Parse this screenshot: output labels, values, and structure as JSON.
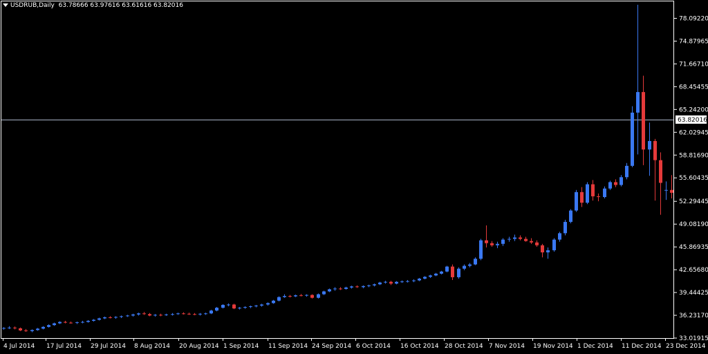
{
  "header": {
    "symbol": "USDRUB,Daily",
    "ohlc": "63.78666 63.97616 63.61616 63.82016"
  },
  "colors": {
    "background": "#000000",
    "bull": "#3a78f2",
    "bear": "#e53a3a",
    "axis": "#ffffff",
    "crosshair": "#aab4c8",
    "price_label_bg": "#ffffff",
    "price_label_text": "#000000"
  },
  "chart_data": {
    "type": "candlestick",
    "ylim": [
      33.01915,
      79.7
    ],
    "y_ticks": [
      "78.09220",
      "74.87965",
      "71.66710",
      "68.45455",
      "65.24200",
      "62.02945",
      "58.81690",
      "55.60435",
      "52.29445",
      "49.08190",
      "45.86935",
      "42.65680",
      "39.44425",
      "36.23170",
      "33.01915"
    ],
    "x_ticks": [
      "4 Jul 2014",
      "17 Jul 2014",
      "29 Jul 2014",
      "8 Aug 2014",
      "20 Aug 2014",
      "1 Sep 2014",
      "11 Sep 2014",
      "24 Sep 2014",
      "6 Oct 2014",
      "16 Oct 2014",
      "28 Oct 2014",
      "7 Nov 2014",
      "19 Nov 2014",
      "1 Dec 2014",
      "11 Dec 2014",
      "23 Dec 2014"
    ],
    "current_price": "63.82016",
    "candles": [
      [
        34.35,
        34.55,
        34.2,
        34.45
      ],
      [
        34.45,
        34.7,
        34.3,
        34.5
      ],
      [
        34.5,
        34.65,
        34.25,
        34.4
      ],
      [
        34.4,
        34.5,
        34.0,
        34.1
      ],
      [
        34.1,
        34.3,
        33.9,
        34.0
      ],
      [
        34.0,
        34.25,
        33.85,
        34.15
      ],
      [
        34.15,
        34.45,
        34.05,
        34.35
      ],
      [
        34.35,
        34.7,
        34.25,
        34.6
      ],
      [
        34.6,
        34.95,
        34.5,
        34.85
      ],
      [
        34.85,
        35.2,
        34.75,
        35.1
      ],
      [
        35.1,
        35.4,
        35.0,
        35.3
      ],
      [
        35.3,
        35.45,
        35.1,
        35.2
      ],
      [
        35.2,
        35.35,
        35.05,
        35.15
      ],
      [
        35.15,
        35.35,
        35.0,
        35.25
      ],
      [
        35.25,
        35.45,
        35.1,
        35.3
      ],
      [
        35.3,
        35.55,
        35.2,
        35.45
      ],
      [
        35.45,
        35.7,
        35.35,
        35.6
      ],
      [
        35.6,
        35.9,
        35.5,
        35.8
      ],
      [
        35.8,
        36.05,
        35.7,
        35.95
      ],
      [
        35.95,
        36.1,
        35.8,
        35.9
      ],
      [
        35.9,
        36.1,
        35.75,
        36.0
      ],
      [
        36.0,
        36.2,
        35.85,
        36.1
      ],
      [
        36.1,
        36.3,
        36.0,
        36.2
      ],
      [
        36.2,
        36.45,
        36.05,
        36.35
      ],
      [
        36.35,
        36.6,
        36.2,
        36.5
      ],
      [
        36.5,
        36.7,
        36.3,
        36.4
      ],
      [
        36.4,
        36.55,
        36.1,
        36.2
      ],
      [
        36.2,
        36.4,
        36.05,
        36.3
      ],
      [
        36.3,
        36.45,
        36.1,
        36.25
      ],
      [
        36.25,
        36.45,
        36.15,
        36.35
      ],
      [
        36.35,
        36.55,
        36.2,
        36.4
      ],
      [
        36.4,
        36.6,
        36.3,
        36.5
      ],
      [
        36.5,
        36.65,
        36.35,
        36.45
      ],
      [
        36.45,
        36.6,
        36.3,
        36.4
      ],
      [
        36.4,
        36.55,
        36.25,
        36.35
      ],
      [
        36.35,
        36.55,
        36.2,
        36.45
      ],
      [
        36.45,
        36.6,
        36.3,
        36.5
      ],
      [
        36.5,
        37.0,
        36.4,
        36.9
      ],
      [
        36.9,
        37.4,
        36.8,
        37.3
      ],
      [
        37.3,
        37.8,
        37.2,
        37.7
      ],
      [
        37.7,
        37.9,
        37.5,
        37.75
      ],
      [
        37.75,
        37.85,
        37.1,
        37.2
      ],
      [
        37.2,
        37.4,
        37.05,
        37.3
      ],
      [
        37.3,
        37.5,
        37.15,
        37.4
      ],
      [
        37.4,
        37.6,
        37.25,
        37.5
      ],
      [
        37.5,
        37.7,
        37.35,
        37.6
      ],
      [
        37.6,
        37.85,
        37.45,
        37.75
      ],
      [
        37.75,
        38.05,
        37.6,
        37.95
      ],
      [
        37.95,
        38.4,
        37.85,
        38.3
      ],
      [
        38.3,
        38.9,
        38.2,
        38.8
      ],
      [
        38.8,
        39.2,
        38.7,
        38.95
      ],
      [
        38.95,
        39.1,
        38.75,
        38.9
      ],
      [
        38.9,
        39.15,
        38.8,
        39.05
      ],
      [
        39.05,
        39.25,
        38.9,
        39.0
      ],
      [
        39.0,
        39.2,
        38.85,
        39.1
      ],
      [
        39.1,
        39.2,
        38.6,
        38.7
      ],
      [
        38.7,
        39.3,
        38.6,
        39.2
      ],
      [
        39.2,
        39.7,
        39.1,
        39.6
      ],
      [
        39.6,
        40.0,
        39.5,
        39.9
      ],
      [
        39.9,
        40.2,
        39.7,
        40.0
      ],
      [
        40.0,
        40.2,
        39.8,
        39.95
      ],
      [
        39.95,
        40.25,
        39.85,
        40.15
      ],
      [
        40.15,
        40.4,
        40.0,
        40.3
      ],
      [
        40.3,
        40.45,
        40.1,
        40.2
      ],
      [
        40.2,
        40.45,
        40.05,
        40.35
      ],
      [
        40.35,
        40.55,
        40.2,
        40.45
      ],
      [
        40.45,
        40.7,
        40.3,
        40.6
      ],
      [
        40.6,
        40.95,
        40.5,
        40.85
      ],
      [
        40.85,
        41.1,
        40.7,
        40.95
      ],
      [
        40.95,
        41.1,
        40.5,
        40.7
      ],
      [
        40.7,
        41.05,
        40.6,
        40.95
      ],
      [
        40.95,
        41.15,
        40.8,
        41.0
      ],
      [
        41.0,
        41.2,
        40.85,
        41.05
      ],
      [
        41.05,
        41.3,
        40.9,
        41.15
      ],
      [
        41.15,
        41.5,
        41.05,
        41.4
      ],
      [
        41.4,
        41.75,
        41.3,
        41.65
      ],
      [
        41.65,
        41.95,
        41.5,
        41.85
      ],
      [
        41.85,
        42.2,
        41.75,
        42.1
      ],
      [
        42.1,
        42.5,
        42.0,
        42.4
      ],
      [
        42.4,
        43.2,
        42.3,
        43.1
      ],
      [
        43.1,
        43.4,
        41.2,
        41.6
      ],
      [
        41.6,
        43.0,
        41.4,
        42.8
      ],
      [
        42.8,
        43.4,
        42.6,
        43.2
      ],
      [
        43.2,
        43.6,
        43.0,
        43.4
      ],
      [
        43.4,
        44.4,
        43.3,
        44.2
      ],
      [
        44.2,
        47.0,
        44.0,
        46.8
      ],
      [
        46.8,
        48.9,
        45.8,
        46.4
      ],
      [
        46.4,
        46.7,
        45.9,
        46.1
      ],
      [
        46.1,
        46.6,
        45.7,
        46.3
      ],
      [
        46.3,
        47.1,
        46.0,
        46.9
      ],
      [
        46.9,
        47.3,
        46.6,
        47.0
      ],
      [
        47.0,
        47.6,
        46.7,
        47.2
      ],
      [
        47.2,
        47.5,
        46.8,
        47.0
      ],
      [
        47.0,
        47.3,
        46.6,
        46.7
      ],
      [
        46.7,
        47.1,
        46.3,
        46.5
      ],
      [
        46.5,
        46.8,
        45.9,
        46.1
      ],
      [
        46.1,
        46.3,
        44.4,
        45.1
      ],
      [
        45.1,
        45.8,
        44.2,
        45.4
      ],
      [
        45.4,
        47.1,
        45.2,
        46.9
      ],
      [
        46.9,
        48.0,
        46.6,
        47.8
      ],
      [
        47.8,
        49.7,
        47.5,
        49.4
      ],
      [
        49.4,
        51.2,
        49.2,
        51.0
      ],
      [
        51.0,
        53.9,
        50.8,
        53.6
      ],
      [
        53.6,
        54.3,
        51.5,
        52.1
      ],
      [
        52.1,
        55.0,
        51.9,
        54.7
      ],
      [
        54.7,
        55.3,
        52.4,
        53.0
      ],
      [
        53.0,
        53.4,
        52.3,
        52.9
      ],
      [
        52.9,
        54.4,
        52.7,
        54.1
      ],
      [
        54.1,
        55.2,
        53.9,
        55.0
      ],
      [
        55.0,
        55.4,
        54.3,
        54.6
      ],
      [
        54.6,
        56.0,
        54.4,
        55.7
      ],
      [
        55.7,
        57.7,
        55.4,
        57.3
      ],
      [
        57.3,
        65.7,
        57.1,
        64.8
      ],
      [
        64.8,
        80.0,
        58.9,
        67.7
      ],
      [
        67.7,
        70.0,
        57.4,
        59.6
      ],
      [
        59.6,
        63.4,
        55.9,
        60.8
      ],
      [
        60.8,
        61.1,
        52.4,
        58.1
      ],
      [
        58.1,
        59.2,
        50.4,
        54.9
      ],
      [
        53.8,
        55.1,
        52.5,
        53.9
      ],
      [
        53.9,
        56.0,
        52.7,
        53.5
      ]
    ]
  }
}
